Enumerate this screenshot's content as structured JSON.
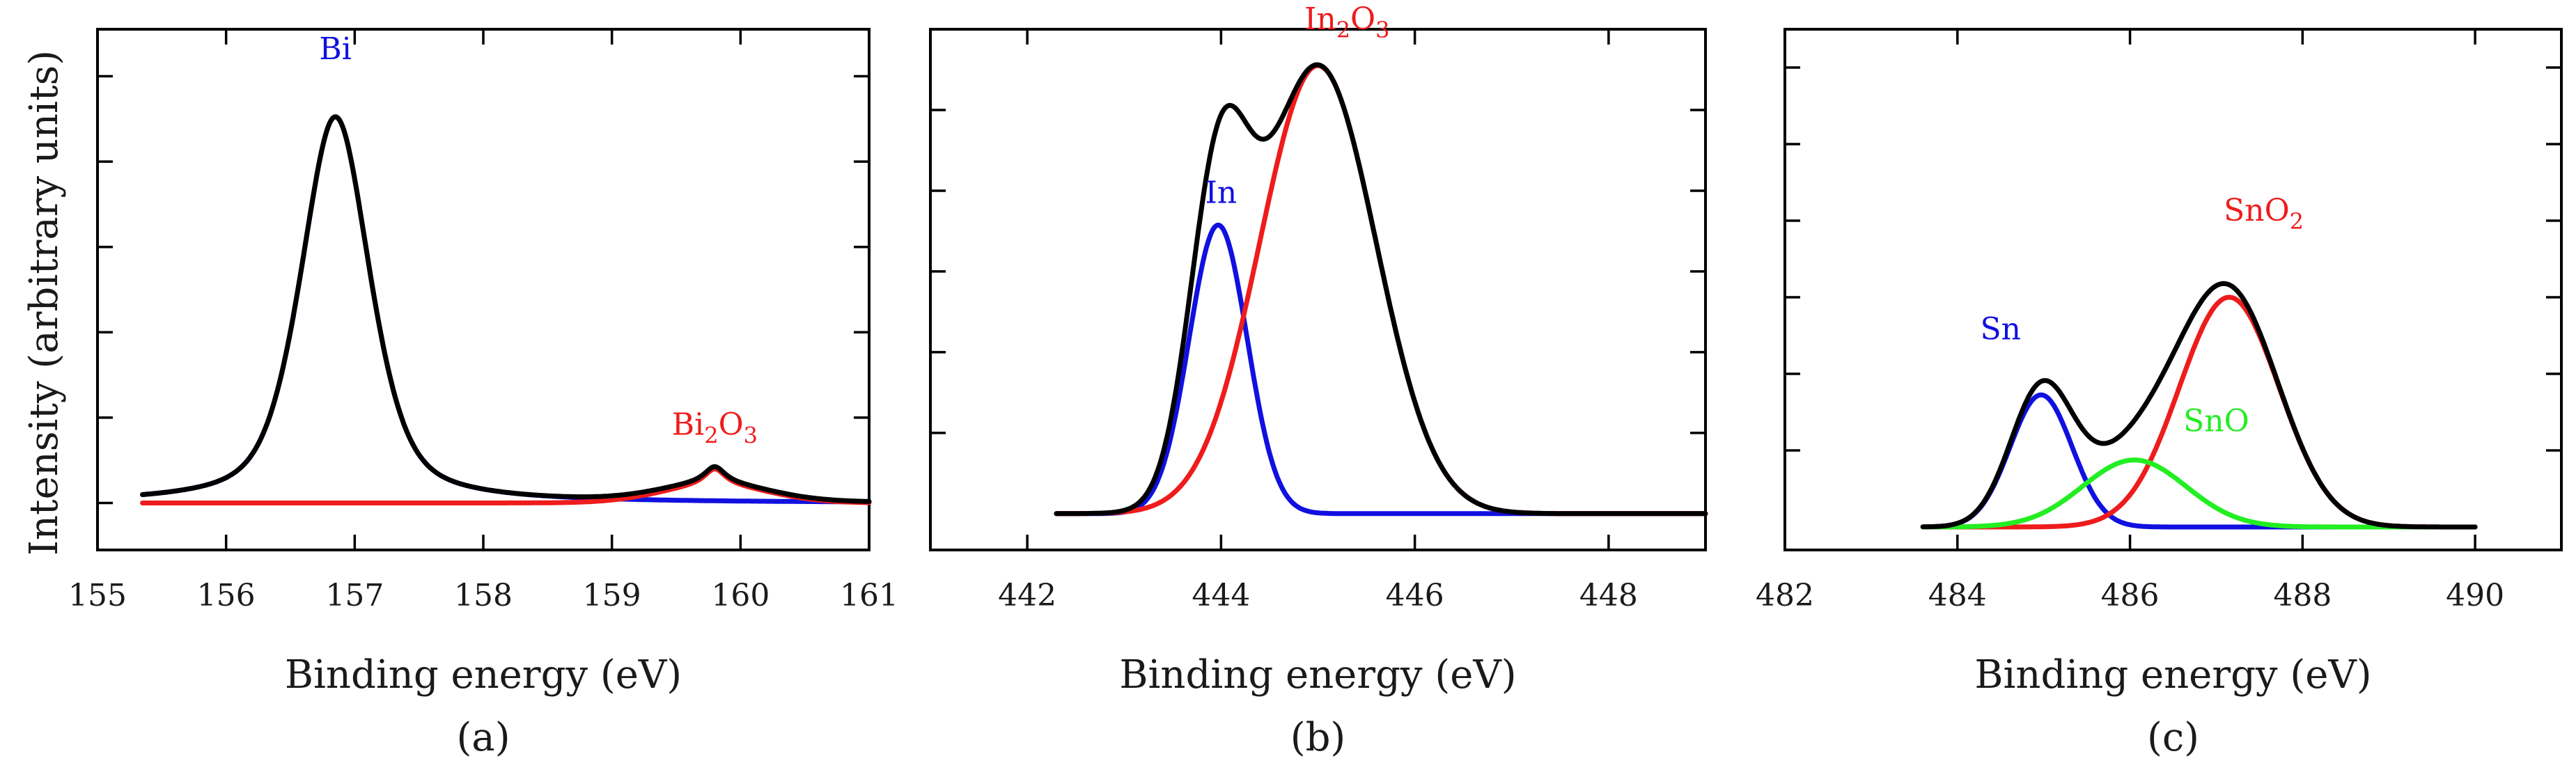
{
  "figure": {
    "ylabel": "Intensity (arbitrary units)",
    "colors": {
      "black": "#000000",
      "blue": "#1010e0",
      "red": "#ee1c1c",
      "green": "#22ee22"
    }
  },
  "chart_data": [
    {
      "type": "line",
      "id": "a",
      "panel_label": "(a)",
      "xlabel": "Binding energy (eV)",
      "ylabel": "Intensity (arbitrary units)",
      "xlim": [
        155,
        161
      ],
      "ylim": [
        -0.11,
        1.11
      ],
      "xticks": [
        155,
        156,
        157,
        158,
        159,
        160,
        161
      ],
      "yticks": [
        0,
        0.2,
        0.4,
        0.6,
        0.8,
        1.0
      ],
      "x_range": [
        155.35,
        161
      ],
      "series": [
        {
          "name": "Bi",
          "color": "#1010e0",
          "label": "Bi",
          "label_at": [
            156.85,
            1.04
          ],
          "components": [
            {
              "center": 156.85,
              "amp": 0.905,
              "sigma": 0.27,
              "gamma": 0.32
            }
          ]
        },
        {
          "name": "Bi2O3",
          "color": "#ee1c1c",
          "label": "Bi",
          "label_sub": "2",
          "label_mid": "O",
          "label_sub2": "3",
          "label_at": [
            159.8,
            0.16
          ],
          "components": [
            {
              "center": 159.8,
              "amp": 0.08,
              "sigma": 0.42,
              "gamma": 0.1
            }
          ]
        },
        {
          "name": "envelope",
          "color": "#000000",
          "sum_of": [
            "Bi",
            "Bi2O3"
          ]
        }
      ]
    },
    {
      "type": "line",
      "id": "b",
      "panel_label": "(b)",
      "xlabel": "Binding energy (eV)",
      "xlim": [
        441,
        449
      ],
      "ylim": [
        -0.09,
        1.2
      ],
      "xticks": [
        442,
        444,
        446,
        448
      ],
      "yticks": [
        0.2,
        0.4,
        0.6,
        0.8,
        1.0,
        1.2
      ],
      "x_range": [
        442.3,
        449
      ],
      "series": [
        {
          "name": "In",
          "color": "#1010e0",
          "label": "In",
          "label_at": [
            444.0,
            0.77
          ],
          "components": [
            {
              "center": 443.97,
              "amp": 0.715,
              "sigma": 0.3,
              "gamma": 0
            }
          ]
        },
        {
          "name": "In2O3",
          "color": "#ee1c1c",
          "label": "In",
          "label_sub": "2",
          "label_mid": "O",
          "label_sub2": "3",
          "label_at": [
            445.3,
            1.2
          ],
          "components": [
            {
              "center": 445.0,
              "amp": 1.11,
              "sigma": 0.6,
              "gamma": 0
            }
          ]
        },
        {
          "name": "envelope",
          "color": "#000000",
          "sum_of": [
            "In",
            "In2O3"
          ]
        }
      ]
    },
    {
      "type": "line",
      "id": "c",
      "panel_label": "(c)",
      "xlabel": "Binding energy (eV)",
      "xlim": [
        482,
        491
      ],
      "ylim": [
        -0.06,
        1.3
      ],
      "xticks": [
        482,
        484,
        486,
        488,
        490
      ],
      "yticks": [
        0.2,
        0.4,
        0.6,
        0.8,
        1.0,
        1.2
      ],
      "x_range": [
        483.6,
        490
      ],
      "series": [
        {
          "name": "Sn",
          "color": "#1010e0",
          "label": "Sn",
          "label_at": [
            484.5,
            0.49
          ],
          "components": [
            {
              "center": 484.97,
              "amp": 0.345,
              "sigma": 0.36,
              "gamma": 0
            }
          ]
        },
        {
          "name": "SnO2",
          "color": "#ee1c1c",
          "label": "SnO",
          "label_sub": "2",
          "label_at": [
            487.55,
            0.8
          ],
          "components": [
            {
              "center": 487.15,
              "amp": 0.6,
              "sigma": 0.58,
              "gamma": 0
            }
          ]
        },
        {
          "name": "SnO",
          "color": "#22ee22",
          "label": "SnO",
          "label_at": [
            487.0,
            0.25
          ],
          "components": [
            {
              "center": 486.05,
              "amp": 0.175,
              "sigma": 0.6,
              "gamma": 0
            }
          ]
        },
        {
          "name": "envelope",
          "color": "#000000",
          "sum_of": [
            "Sn",
            "SnO2",
            "SnO"
          ]
        }
      ]
    }
  ]
}
